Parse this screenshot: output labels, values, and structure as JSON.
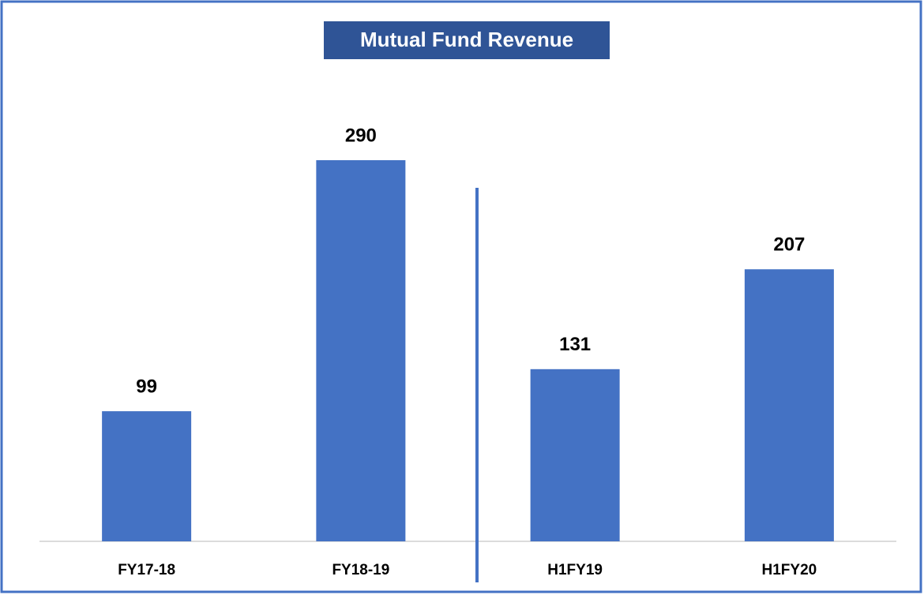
{
  "chart_data": {
    "type": "bar",
    "title": "Mutual Fund Revenue",
    "categories": [
      "FY17-18",
      "FY18-19",
      "H1FY19",
      "H1FY20"
    ],
    "values": [
      99,
      290,
      131,
      207
    ],
    "color": "#4472c4"
  }
}
